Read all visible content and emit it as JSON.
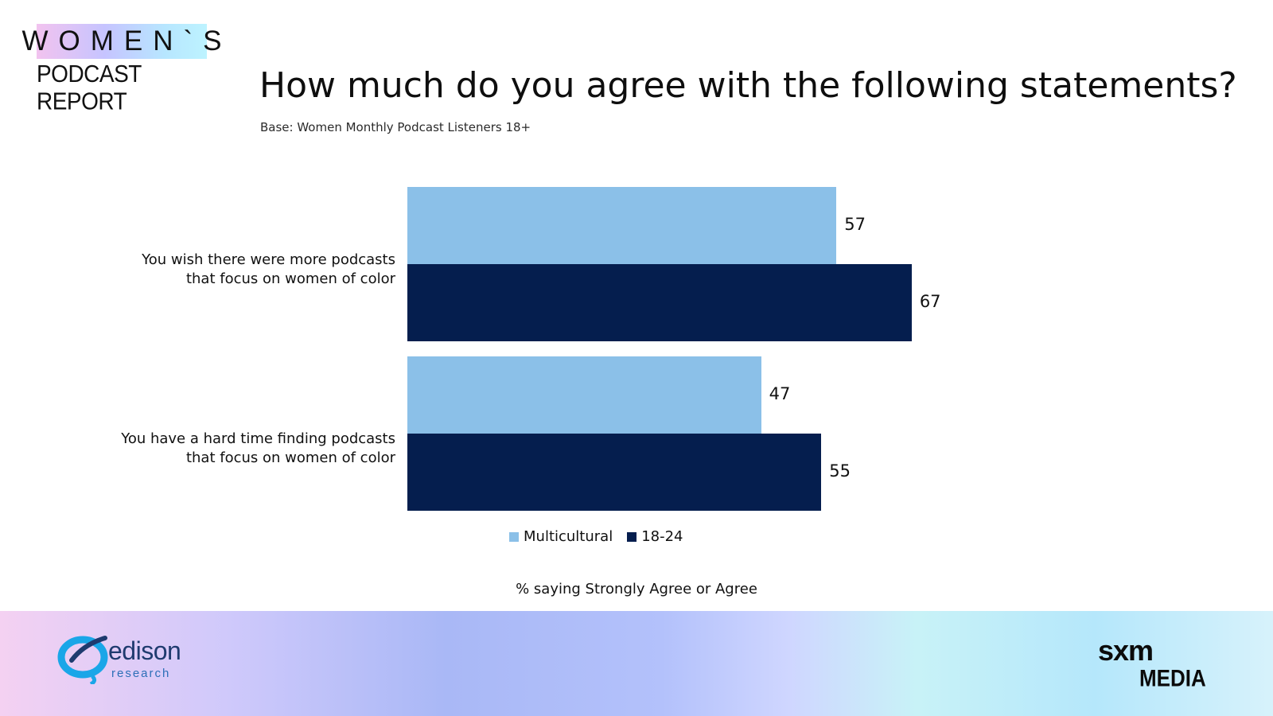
{
  "logo": {
    "line1": "WOMEN`S",
    "line2": "PODCAST REPORT"
  },
  "header": {
    "title": "How much do you agree with the following statements?",
    "subtitle": "Base: Women Monthly Podcast Listeners 18+"
  },
  "colors": {
    "multicultural": "#8bc0e8",
    "age_18_24": "#051e4e"
  },
  "chart_data": {
    "type": "bar",
    "orientation": "horizontal",
    "categories": [
      "You wish there were more podcasts\nthat  focus on women of color",
      "You have a hard time finding podcasts\nthat focus on women of color"
    ],
    "series": [
      {
        "name": "Multicultural",
        "values": [
          57,
          47
        ],
        "color": "#8bc0e8"
      },
      {
        "name": "18-24",
        "values": [
          67,
          55
        ],
        "color": "#051e4e"
      }
    ],
    "xlabel": "% saying Strongly Agree or Agree",
    "xlim": [
      0,
      100
    ],
    "grid": false,
    "legend": "bottom"
  },
  "footer": {
    "edison_name": "edison",
    "edison_sub": "research",
    "sxm_top": "sxm",
    "sxm_bottom": "MEDIA"
  }
}
